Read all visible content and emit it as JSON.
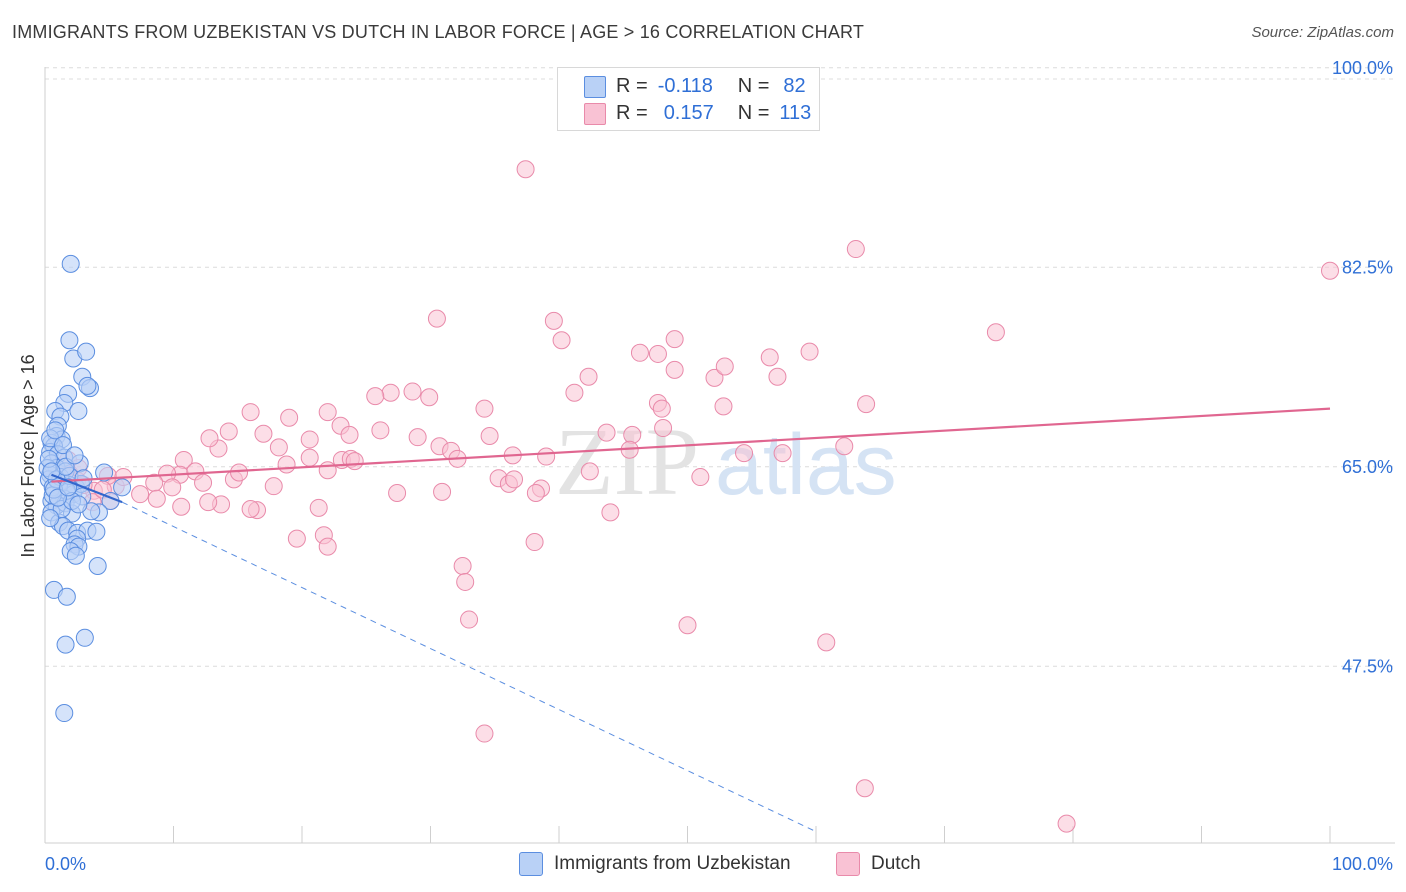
{
  "title": "IMMIGRANTS FROM UZBEKISTAN VS DUTCH IN LABOR FORCE | AGE > 16 CORRELATION CHART",
  "source": "Source: ZipAtlas.com",
  "watermark": {
    "zip": "ZIP",
    "atlas": "atlas"
  },
  "colors": {
    "blue_fill": "#b9d1f6",
    "blue_stroke": "#5b8ee0",
    "blue_line": "#3366cc",
    "pink_fill": "#f9c2d4",
    "pink_stroke": "#e98aaa",
    "pink_line": "#e06690",
    "tick_label": "#2f6fd6",
    "grid": "#dcdcdc"
  },
  "legend": {
    "rows": [
      {
        "r_label": "R =",
        "r_value": "-0.118",
        "n_label": "N =",
        "n_value": "82"
      },
      {
        "r_label": "R =",
        "r_value": "0.157",
        "n_label": "N =",
        "n_value": "113"
      }
    ]
  },
  "chart_data": {
    "type": "scatter",
    "title": "IMMIGRANTS FROM UZBEKISTAN VS DUTCH IN LABOR FORCE | AGE > 16 CORRELATION CHART",
    "xlabel": "",
    "ylabel": "In Labor Force | Age > 16",
    "xlim": [
      0,
      100
    ],
    "ylim": [
      32,
      102
    ],
    "x_tick_labels": [
      "0.0%",
      "100.0%"
    ],
    "y_ticks": [
      47.5,
      65.0,
      82.5,
      100.0
    ],
    "y_tick_labels": [
      "47.5%",
      "65.0%",
      "82.5%",
      "100.0%"
    ],
    "grid": true,
    "legend_position": "bottom",
    "series": [
      {
        "name": "Immigrants from Uzbekistan",
        "r": -0.118,
        "n": 82,
        "trend": {
          "x": [
            0.5,
            6
          ],
          "y": [
            64.3,
            61.9
          ]
        },
        "trend_extension": {
          "x": [
            6,
            60
          ],
          "y": [
            61.9,
            33
          ]
        },
        "points": [
          [
            2.0,
            82.8
          ],
          [
            1.9,
            76.1
          ],
          [
            2.2,
            74.5
          ],
          [
            3.2,
            75.1
          ],
          [
            2.9,
            72.9
          ],
          [
            3.5,
            71.9
          ],
          [
            3.3,
            72.1
          ],
          [
            1.8,
            71.4
          ],
          [
            1.5,
            70.6
          ],
          [
            2.6,
            69.9
          ],
          [
            0.8,
            69.9
          ],
          [
            1.2,
            69.4
          ],
          [
            1.0,
            68.6
          ],
          [
            0.9,
            67.7
          ],
          [
            1.3,
            67.4
          ],
          [
            0.5,
            67.1
          ],
          [
            0.7,
            66.8
          ],
          [
            0.4,
            66.3
          ],
          [
            1.0,
            66.1
          ],
          [
            1.5,
            65.8
          ],
          [
            2.7,
            65.3
          ],
          [
            0.5,
            65.3
          ],
          [
            0.9,
            64.9
          ],
          [
            1.6,
            64.6
          ],
          [
            0.4,
            64.3
          ],
          [
            0.3,
            63.9
          ],
          [
            1.1,
            63.6
          ],
          [
            1.9,
            63.4
          ],
          [
            2.4,
            63.2
          ],
          [
            2.2,
            62.6
          ],
          [
            1.5,
            62.2
          ],
          [
            0.5,
            62.0
          ],
          [
            0.9,
            61.6
          ],
          [
            1.6,
            61.8
          ],
          [
            0.5,
            61.0
          ],
          [
            2.1,
            60.9
          ],
          [
            1.1,
            60.1
          ],
          [
            1.4,
            59.8
          ],
          [
            1.8,
            59.4
          ],
          [
            2.5,
            59.2
          ],
          [
            3.3,
            59.4
          ],
          [
            4.0,
            59.3
          ],
          [
            2.5,
            58.7
          ],
          [
            2.3,
            58.2
          ],
          [
            2.6,
            58.0
          ],
          [
            2.0,
            57.6
          ],
          [
            2.4,
            57.2
          ],
          [
            4.1,
            56.3
          ],
          [
            0.7,
            54.2
          ],
          [
            1.7,
            53.6
          ],
          [
            3.1,
            50.0
          ],
          [
            1.6,
            49.4
          ],
          [
            1.5,
            43.4
          ],
          [
            4.6,
            64.5
          ],
          [
            5.1,
            62.0
          ],
          [
            6.0,
            63.2
          ],
          [
            4.2,
            61.0
          ],
          [
            0.4,
            67.5
          ],
          [
            0.2,
            64.9
          ],
          [
            0.6,
            63.2
          ],
          [
            1.2,
            64.1
          ],
          [
            2.8,
            63.5
          ],
          [
            1.7,
            62.9
          ],
          [
            0.8,
            68.2
          ],
          [
            1.4,
            66.9
          ],
          [
            0.3,
            65.7
          ],
          [
            1.9,
            64.2
          ],
          [
            2.9,
            62.4
          ],
          [
            0.6,
            62.5
          ],
          [
            1.3,
            61.3
          ],
          [
            2.1,
            62.0
          ],
          [
            0.9,
            63.9
          ],
          [
            3.6,
            61.1
          ],
          [
            0.4,
            60.5
          ],
          [
            1.6,
            65.0
          ],
          [
            2.3,
            66.0
          ],
          [
            0.7,
            63.0
          ],
          [
            1.0,
            62.3
          ],
          [
            3.0,
            64.0
          ],
          [
            0.5,
            64.6
          ],
          [
            1.8,
            63.2
          ],
          [
            2.6,
            61.7
          ]
        ]
      },
      {
        "name": "Dutch",
        "r": 0.157,
        "n": 113,
        "trend": {
          "x": [
            0.5,
            100
          ],
          "y": [
            63.7,
            70.1
          ]
        },
        "points": [
          [
            37.4,
            91.1
          ],
          [
            63.1,
            84.1
          ],
          [
            100.0,
            82.2
          ],
          [
            30.5,
            78.0
          ],
          [
            39.6,
            77.8
          ],
          [
            40.2,
            76.1
          ],
          [
            49.0,
            76.2
          ],
          [
            74.0,
            76.8
          ],
          [
            46.3,
            75.0
          ],
          [
            47.7,
            74.9
          ],
          [
            56.4,
            74.6
          ],
          [
            42.3,
            72.9
          ],
          [
            49.0,
            73.5
          ],
          [
            52.1,
            72.8
          ],
          [
            52.9,
            73.8
          ],
          [
            57.0,
            72.9
          ],
          [
            59.5,
            75.1
          ],
          [
            26.9,
            71.5
          ],
          [
            28.6,
            71.6
          ],
          [
            25.7,
            71.2
          ],
          [
            29.9,
            71.1
          ],
          [
            41.2,
            71.5
          ],
          [
            47.7,
            70.6
          ],
          [
            48.0,
            70.1
          ],
          [
            63.9,
            70.5
          ],
          [
            52.8,
            70.3
          ],
          [
            34.2,
            70.1
          ],
          [
            22.0,
            69.8
          ],
          [
            16.0,
            69.8
          ],
          [
            19.0,
            69.3
          ],
          [
            23.0,
            68.6
          ],
          [
            14.3,
            68.1
          ],
          [
            13.5,
            66.6
          ],
          [
            12.8,
            67.5
          ],
          [
            17.0,
            67.9
          ],
          [
            18.2,
            66.7
          ],
          [
            20.6,
            67.4
          ],
          [
            23.7,
            67.8
          ],
          [
            26.1,
            68.2
          ],
          [
            29.0,
            67.6
          ],
          [
            30.7,
            66.8
          ],
          [
            31.6,
            66.4
          ],
          [
            32.1,
            65.7
          ],
          [
            34.6,
            67.7
          ],
          [
            36.4,
            66.0
          ],
          [
            39.0,
            65.9
          ],
          [
            43.7,
            68.0
          ],
          [
            45.7,
            67.8
          ],
          [
            48.1,
            68.4
          ],
          [
            54.4,
            66.2
          ],
          [
            57.4,
            66.2
          ],
          [
            62.2,
            66.8
          ],
          [
            18.8,
            65.2
          ],
          [
            20.6,
            65.8
          ],
          [
            22.0,
            64.7
          ],
          [
            10.8,
            65.6
          ],
          [
            10.5,
            64.3
          ],
          [
            11.7,
            64.6
          ],
          [
            9.5,
            64.4
          ],
          [
            8.5,
            63.6
          ],
          [
            9.9,
            63.2
          ],
          [
            12.3,
            63.6
          ],
          [
            14.7,
            63.9
          ],
          [
            15.1,
            64.5
          ],
          [
            17.8,
            63.3
          ],
          [
            23.1,
            65.6
          ],
          [
            23.8,
            65.7
          ],
          [
            24.1,
            65.5
          ],
          [
            35.3,
            64.0
          ],
          [
            36.1,
            63.5
          ],
          [
            36.5,
            63.9
          ],
          [
            38.6,
            63.1
          ],
          [
            42.4,
            64.6
          ],
          [
            30.9,
            62.8
          ],
          [
            27.4,
            62.7
          ],
          [
            38.2,
            62.7
          ],
          [
            13.7,
            61.7
          ],
          [
            10.6,
            61.5
          ],
          [
            12.7,
            61.9
          ],
          [
            16.5,
            61.2
          ],
          [
            21.3,
            61.4
          ],
          [
            16.0,
            61.3
          ],
          [
            8.7,
            62.2
          ],
          [
            7.4,
            62.6
          ],
          [
            5.5,
            63.3
          ],
          [
            4.9,
            64.2
          ],
          [
            6.1,
            64.1
          ],
          [
            3.8,
            62.9
          ],
          [
            3.7,
            61.9
          ],
          [
            5.1,
            62.0
          ],
          [
            1.6,
            63.6
          ],
          [
            1.9,
            64.4
          ],
          [
            2.5,
            63.8
          ],
          [
            3.0,
            63.4
          ],
          [
            1.0,
            64.2
          ],
          [
            1.8,
            65.6
          ],
          [
            2.6,
            64.9
          ],
          [
            4.5,
            63.0
          ],
          [
            19.6,
            58.7
          ],
          [
            21.7,
            59.0
          ],
          [
            22.0,
            58.0
          ],
          [
            38.1,
            58.4
          ],
          [
            32.5,
            56.3
          ],
          [
            32.7,
            54.9
          ],
          [
            33.0,
            51.6
          ],
          [
            50.0,
            51.1
          ],
          [
            60.8,
            49.6
          ],
          [
            34.2,
            41.6
          ],
          [
            63.8,
            36.8
          ],
          [
            79.5,
            33.7
          ],
          [
            45.5,
            66.5
          ],
          [
            51.0,
            64.1
          ],
          [
            44.0,
            61.0
          ]
        ]
      }
    ],
    "bottom_legend": [
      "Immigrants from Uzbekistan",
      "Dutch"
    ]
  }
}
